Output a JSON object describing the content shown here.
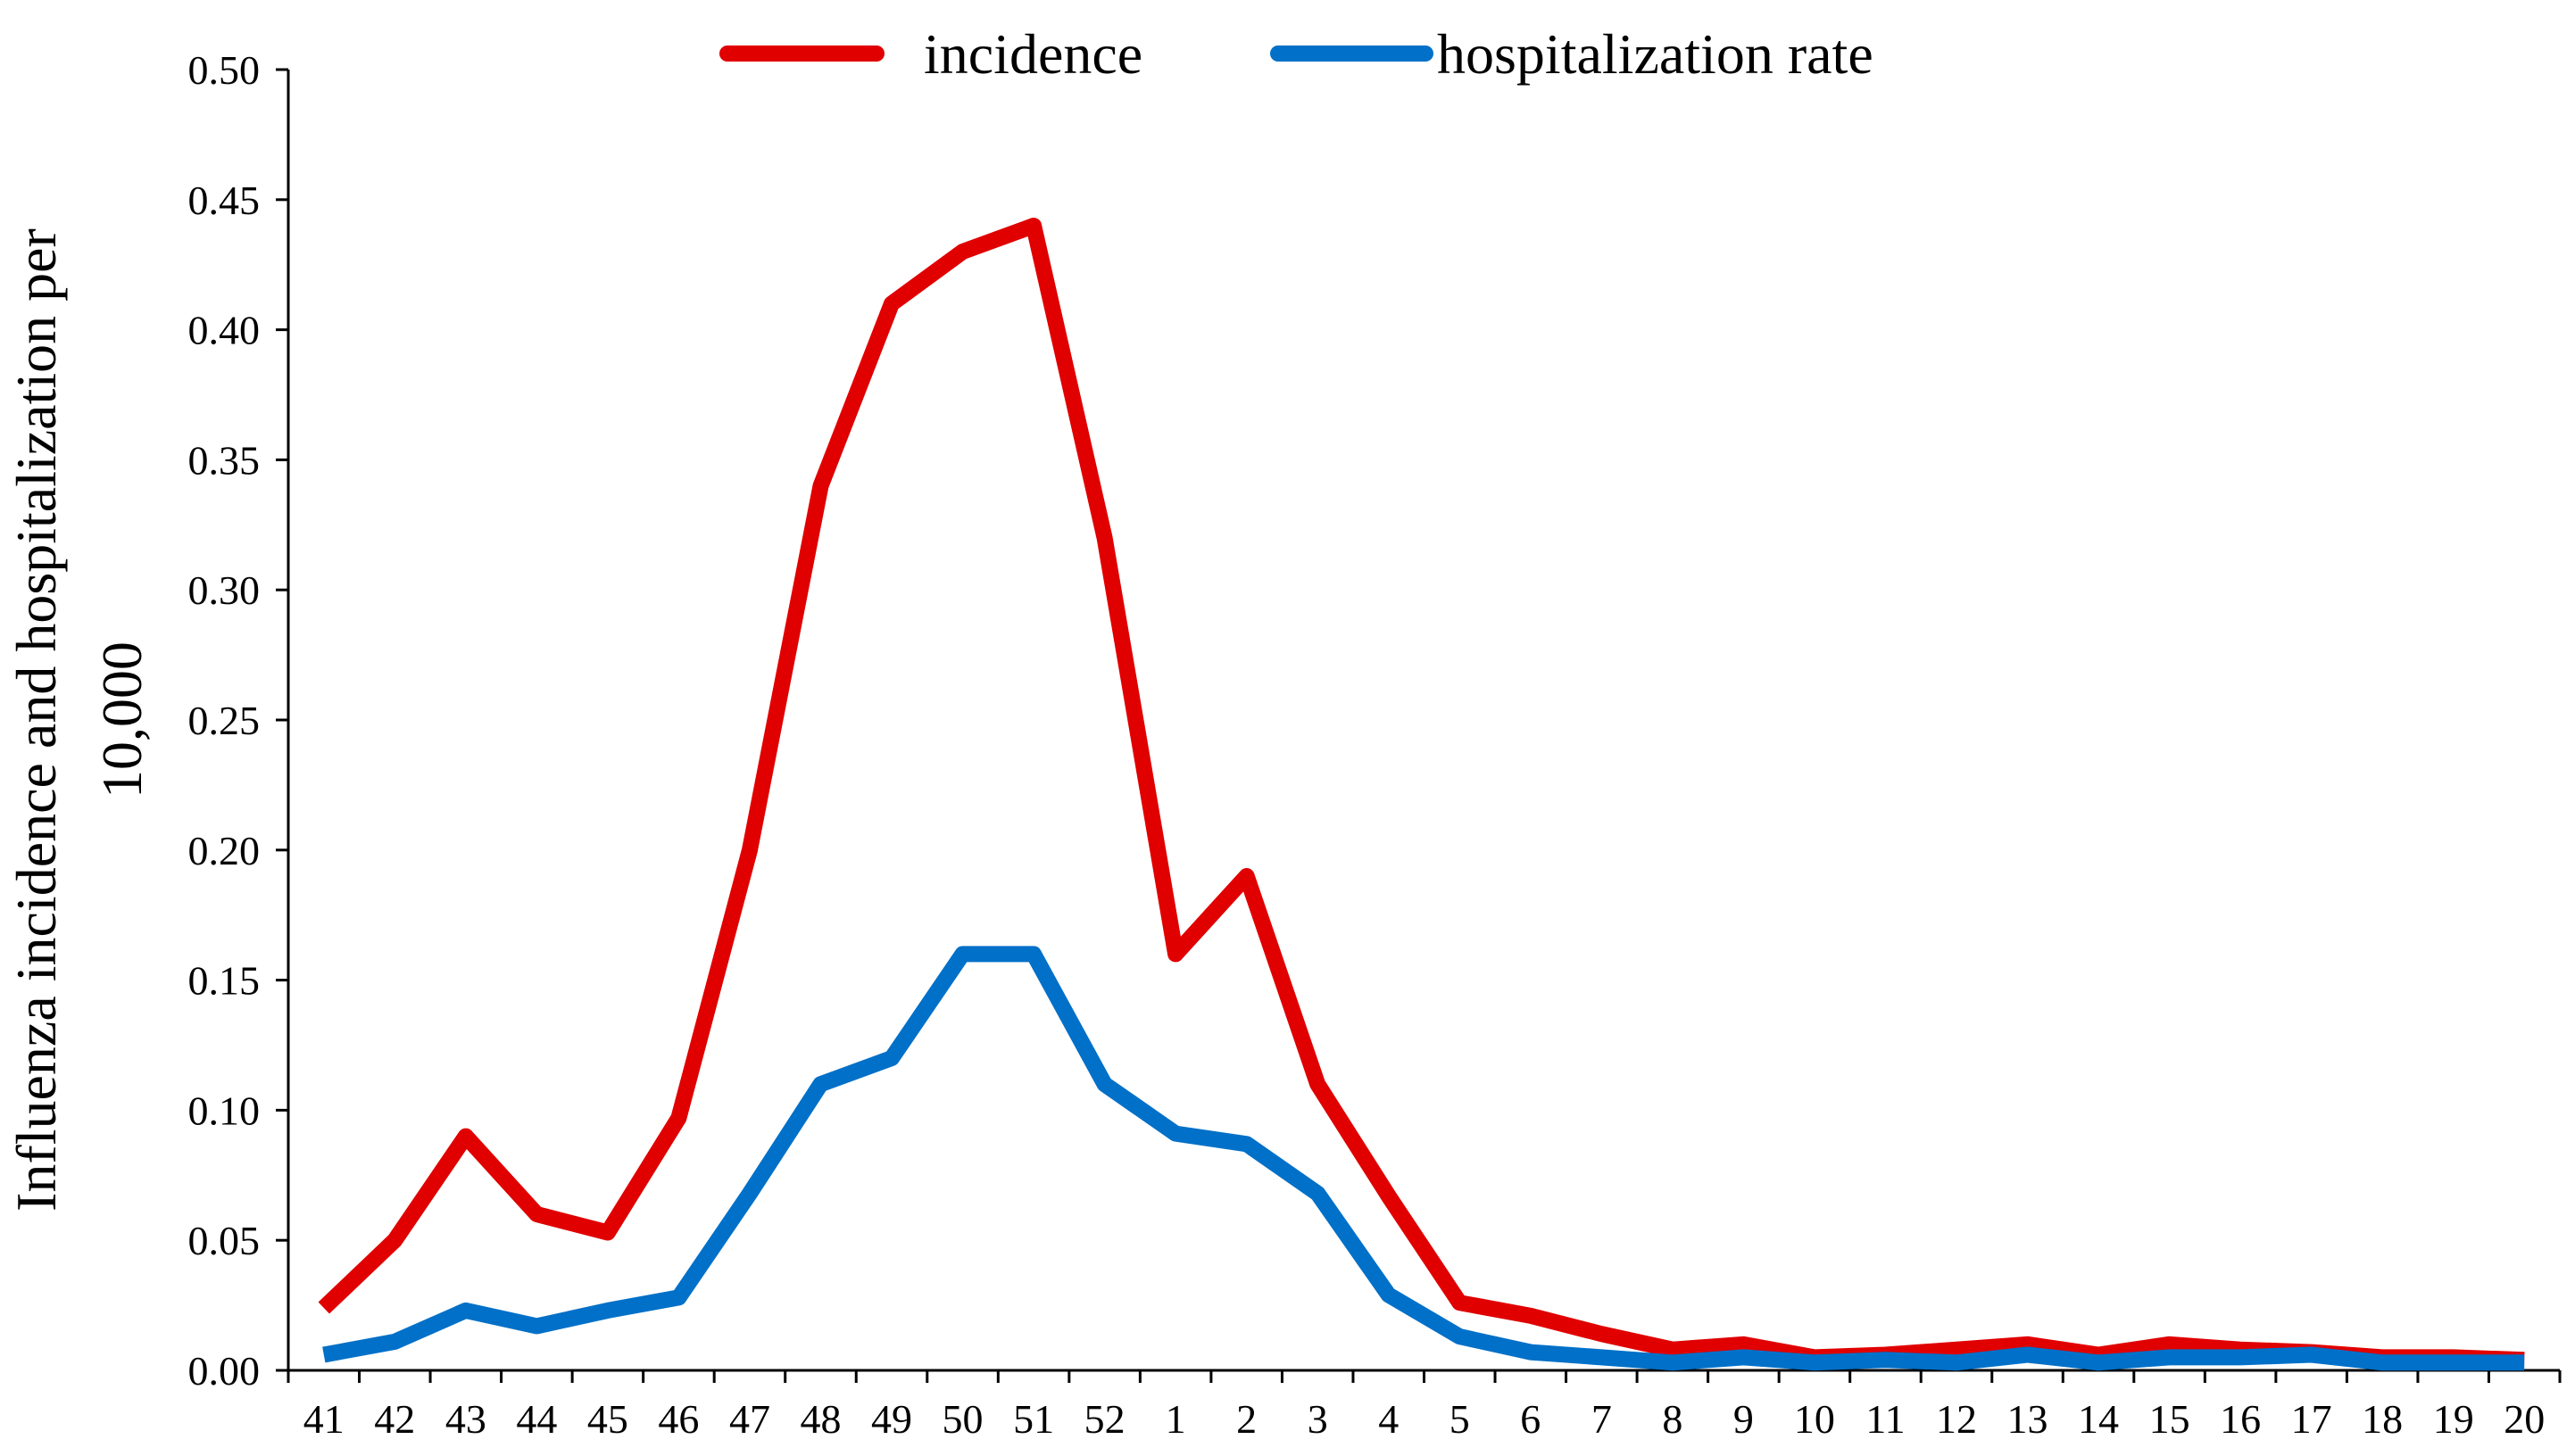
{
  "chart_data": {
    "type": "line",
    "title": "",
    "xlabel": "",
    "ylabel_lines": [
      "Influenza incidence and hospitalization per",
      "10,000"
    ],
    "categories": [
      "41",
      "42",
      "43",
      "44",
      "45",
      "46",
      "47",
      "48",
      "49",
      "50",
      "51",
      "52",
      "1",
      "2",
      "3",
      "4",
      "5",
      "6",
      "7",
      "8",
      "9",
      "10",
      "11",
      "12",
      "13",
      "14",
      "15",
      "16",
      "17",
      "18",
      "19",
      "20"
    ],
    "ylim": [
      0,
      0.5
    ],
    "yticks": [
      "0.00",
      "0.05",
      "0.10",
      "0.15",
      "0.20",
      "0.25",
      "0.30",
      "0.35",
      "0.40",
      "0.45",
      "0.50"
    ],
    "grid": false,
    "legend_position": "top-center",
    "series": [
      {
        "name": "incidence",
        "color": "#e00000",
        "values": [
          0.024,
          0.05,
          0.09,
          0.06,
          0.053,
          0.097,
          0.2,
          0.34,
          0.41,
          0.43,
          0.44,
          0.32,
          0.16,
          0.19,
          0.11,
          0.067,
          0.026,
          0.021,
          0.014,
          0.008,
          0.01,
          0.005,
          0.006,
          0.008,
          0.01,
          0.006,
          0.01,
          0.008,
          0.007,
          0.005,
          0.005,
          0.004
        ]
      },
      {
        "name": "hospitalization rate",
        "color": "#0070c8",
        "values": [
          0.006,
          0.011,
          0.023,
          0.017,
          0.023,
          0.028,
          0.068,
          0.11,
          0.12,
          0.16,
          0.16,
          0.11,
          0.091,
          0.087,
          0.068,
          0.029,
          0.013,
          0.007,
          0.005,
          0.003,
          0.005,
          0.003,
          0.004,
          0.003,
          0.006,
          0.003,
          0.005,
          0.005,
          0.006,
          0.003,
          0.003,
          0.003
        ]
      }
    ]
  }
}
